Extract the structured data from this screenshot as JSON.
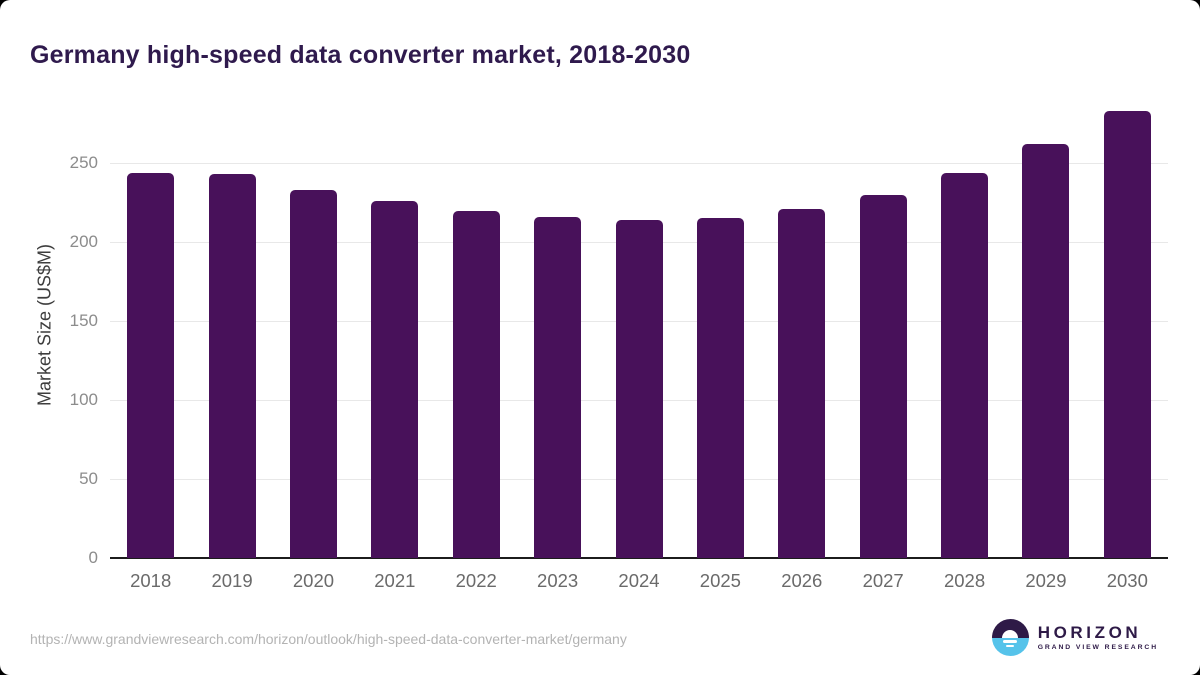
{
  "title": "Germany high-speed data converter market, 2018-2030",
  "chart_data": {
    "type": "bar",
    "categories": [
      "2018",
      "2019",
      "2020",
      "2021",
      "2022",
      "2023",
      "2024",
      "2025",
      "2026",
      "2027",
      "2028",
      "2029",
      "2030"
    ],
    "values": [
      244,
      243,
      233,
      226,
      220,
      216,
      214,
      215,
      221,
      230,
      244,
      262,
      283
    ],
    "title": "Germany high-speed data converter market, 2018-2030",
    "xlabel": "",
    "ylabel": "Market Size (US$M)",
    "yticks": [
      0,
      50,
      100,
      150,
      200,
      250
    ],
    "ylim": [
      0,
      290
    ],
    "grid": true,
    "legend": false,
    "bar_color": "#48115a",
    "gridline_color": "#e8e8e8",
    "axis_line_color": "#1c1c1c",
    "title_color": "#2f1a4d"
  },
  "footer": {
    "source_url": "https://www.grandviewresearch.com/horizon/outlook/high-speed-data-converter-market/germany",
    "logo": {
      "name": "HORIZON",
      "subtitle": "GRAND VIEW RESEARCH",
      "purple": "#2e1a47",
      "blue": "#56c3ea"
    }
  }
}
